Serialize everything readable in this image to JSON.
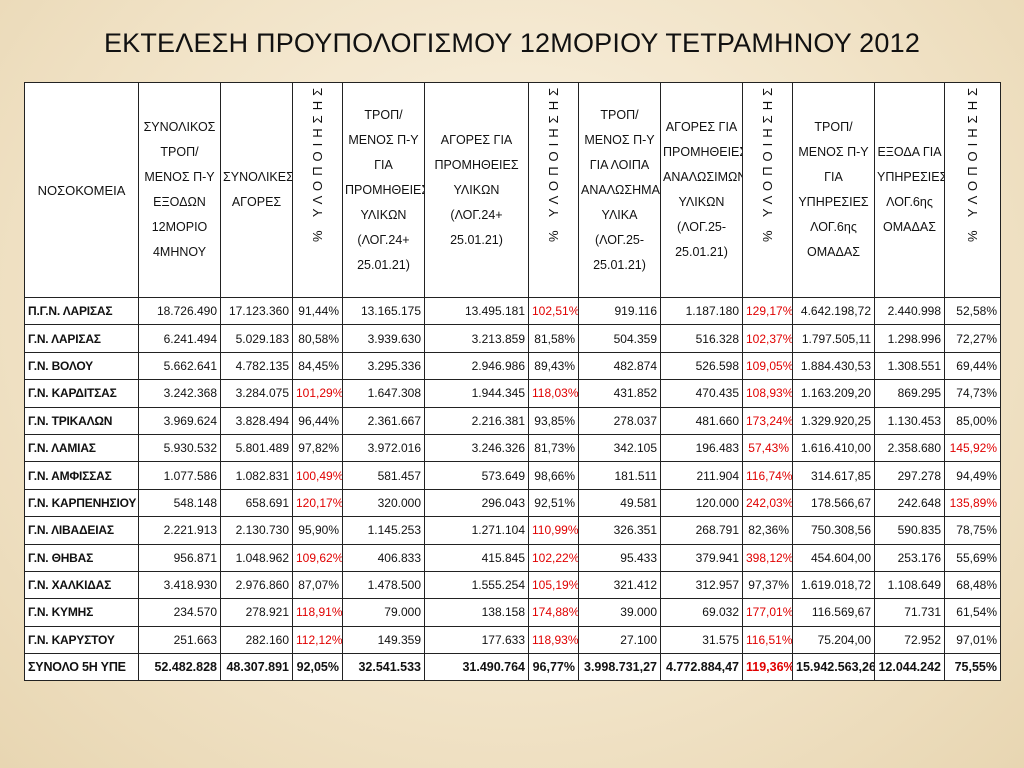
{
  "title": "ΕΚΤΕΛΕΣΗ ΠΡΟΥΠΟΛΟΓΙΣΜΟΥ 12ΜΟΡΙΟΥ ΤΕΤΡΑΜΗΝΟΥ 2012",
  "colors": {
    "overrun": "#e00000",
    "text": "#111111",
    "background": "#f1e3c7"
  },
  "headers": [
    "ΝΟΣΟΚΟΜΕΙΑ",
    "ΣΥΝΟΛΙΚΟΣ ΤΡΟΠ/ΜΕΝΟΣ Π-Υ ΕΞΟΔΩΝ 12ΜΟΡΙΟ 4ΜΗΝΟΥ",
    "ΣΥΝΟΛΙΚΕΣ ΑΓΟΡΕΣ",
    "% ΥΛΟΠΟΙΗΣΗΣ",
    "ΤΡΟΠ/ΜΕΝΟΣ Π-Υ ΓΙΑ ΠΡΟΜΗΘΕΙΕΣ ΥΛΙΚΩΝ (ΛΟΓ.24+ 25.01.21)",
    "ΑΓΟΡΕΣ ΓΙΑ ΠΡΟΜΗΘΕΙΕΣ ΥΛΙΚΩΝ (ΛΟΓ.24+ 25.01.21)",
    "% ΥΛΟΠΟΙΗΣΗΣ",
    "ΤΡΟΠ/ΜΕΝΟΣ Π-Υ ΓΙΑ ΛΟΙΠΑ ΑΝΑΛΩΣΗΜΑ ΥΛΙΚΑ (ΛΟΓ.25- 25.01.21)",
    "ΑΓΟΡΕΣ ΓΙΑ ΠΡΟΜΗΘΕΙΕΣ ΑΝΑΛΩΣΙΜΩΝ ΥΛΙΚΩΝ (ΛΟΓ.25- 25.01.21)",
    "% ΥΛΟΠΟΙΗΣΗΣ",
    "ΤΡΟΠ/ΜΕΝΟΣ Π-Υ ΓΙΑ ΥΠΗΡΕΣΙΕΣ ΛΟΓ.6ης ΟΜΑΔΑΣ",
    "ΕΞΟΔΑ ΓΙΑ ΥΠΗΡΕΣΙΕΣ ΛΟΓ.6ης ΟΜΑΔΑΣ",
    "% ΥΛΟΠΟΙΗΣΗΣ"
  ],
  "rows": [
    {
      "name": "Π.Γ.Ν. ΛΑΡΙΣΑΣ",
      "cells": [
        "18.726.490",
        "17.123.360",
        "91,44%",
        "13.165.175",
        "13.495.181",
        "102,51%",
        "919.116",
        "1.187.180",
        "129,17%",
        "4.642.198,72",
        "2.440.998",
        "52,58%"
      ],
      "red": [
        5,
        8
      ]
    },
    {
      "name": "Γ.Ν. ΛΑΡΙΣΑΣ",
      "cells": [
        "6.241.494",
        "5.029.183",
        "80,58%",
        "3.939.630",
        "3.213.859",
        "81,58%",
        "504.359",
        "516.328",
        "102,37%",
        "1.797.505,11",
        "1.298.996",
        "72,27%"
      ],
      "red": [
        8
      ]
    },
    {
      "name": "Γ.Ν. ΒΟΛΟΥ",
      "cells": [
        "5.662.641",
        "4.782.135",
        "84,45%",
        "3.295.336",
        "2.946.986",
        "89,43%",
        "482.874",
        "526.598",
        "109,05%",
        "1.884.430,53",
        "1.308.551",
        "69,44%"
      ],
      "red": [
        8
      ]
    },
    {
      "name": "Γ.Ν. ΚΑΡΔΙΤΣΑΣ",
      "cells": [
        "3.242.368",
        "3.284.075",
        "101,29%",
        "1.647.308",
        "1.944.345",
        "118,03%",
        "431.852",
        "470.435",
        "108,93%",
        "1.163.209,20",
        "869.295",
        "74,73%"
      ],
      "red": [
        2,
        5,
        8
      ]
    },
    {
      "name": "Γ.Ν. ΤΡΙΚΑΛΩΝ",
      "cells": [
        "3.969.624",
        "3.828.494",
        "96,44%",
        "2.361.667",
        "2.216.381",
        "93,85%",
        "278.037",
        "481.660",
        "173,24%",
        "1.329.920,25",
        "1.130.453",
        "85,00%"
      ],
      "red": [
        8
      ]
    },
    {
      "name": "Γ.Ν. ΛΑΜΙΑΣ",
      "cells": [
        "5.930.532",
        "5.801.489",
        "97,82%",
        "3.972.016",
        "3.246.326",
        "81,73%",
        "342.105",
        "196.483",
        "57,43%",
        "1.616.410,00",
        "2.358.680",
        "145,92%"
      ],
      "red": [
        8,
        11
      ]
    },
    {
      "name": "Γ.Ν. ΑΜΦΙΣΣΑΣ",
      "cells": [
        "1.077.586",
        "1.082.831",
        "100,49%",
        "581.457",
        "573.649",
        "98,66%",
        "181.511",
        "211.904",
        "116,74%",
        "314.617,85",
        "297.278",
        "94,49%"
      ],
      "red": [
        2,
        8
      ]
    },
    {
      "name": "Γ.Ν. ΚΑΡΠΕΝΗΣΙΟΥ",
      "cells": [
        "548.148",
        "658.691",
        "120,17%",
        "320.000",
        "296.043",
        "92,51%",
        "49.581",
        "120.000",
        "242,03%",
        "178.566,67",
        "242.648",
        "135,89%"
      ],
      "red": [
        2,
        8,
        11
      ]
    },
    {
      "name": "Γ.Ν. ΛΙΒΑΔΕΙΑΣ",
      "cells": [
        "2.221.913",
        "2.130.730",
        "95,90%",
        "1.145.253",
        "1.271.104",
        "110,99%",
        "326.351",
        "268.791",
        "82,36%",
        "750.308,56",
        "590.835",
        "78,75%"
      ],
      "red": [
        5
      ]
    },
    {
      "name": "Γ.Ν. ΘΗΒΑΣ",
      "cells": [
        "956.871",
        "1.048.962",
        "109,62%",
        "406.833",
        "415.845",
        "102,22%",
        "95.433",
        "379.941",
        "398,12%",
        "454.604,00",
        "253.176",
        "55,69%"
      ],
      "red": [
        2,
        5,
        8
      ]
    },
    {
      "name": "Γ.Ν. ΧΑΛΚΙΔΑΣ",
      "cells": [
        "3.418.930",
        "2.976.860",
        "87,07%",
        "1.478.500",
        "1.555.254",
        "105,19%",
        "321.412",
        "312.957",
        "97,37%",
        "1.619.018,72",
        "1.108.649",
        "68,48%"
      ],
      "red": [
        5
      ]
    },
    {
      "name": "Γ.Ν. ΚΥΜΗΣ",
      "cells": [
        "234.570",
        "278.921",
        "118,91%",
        "79.000",
        "138.158",
        "174,88%",
        "39.000",
        "69.032",
        "177,01%",
        "116.569,67",
        "71.731",
        "61,54%"
      ],
      "red": [
        2,
        5,
        8
      ]
    },
    {
      "name": "Γ.Ν. ΚΑΡΥΣΤΟΥ",
      "cells": [
        "251.663",
        "282.160",
        "112,12%",
        "149.359",
        "177.633",
        "118,93%",
        "27.100",
        "31.575",
        "116,51%",
        "75.204,00",
        "72.952",
        "97,01%"
      ],
      "red": [
        2,
        5,
        8
      ]
    }
  ],
  "total": {
    "name": "ΣΥΝΟΛΟ 5Η ΥΠΕ",
    "cells": [
      "52.482.828",
      "48.307.891",
      "92,05%",
      "32.541.533",
      "31.490.764",
      "96,77%",
      "3.998.731,27",
      "4.772.884,47",
      "119,36%",
      "15.942.563,26",
      "12.044.242",
      "75,55%"
    ],
    "red": [
      8
    ]
  }
}
